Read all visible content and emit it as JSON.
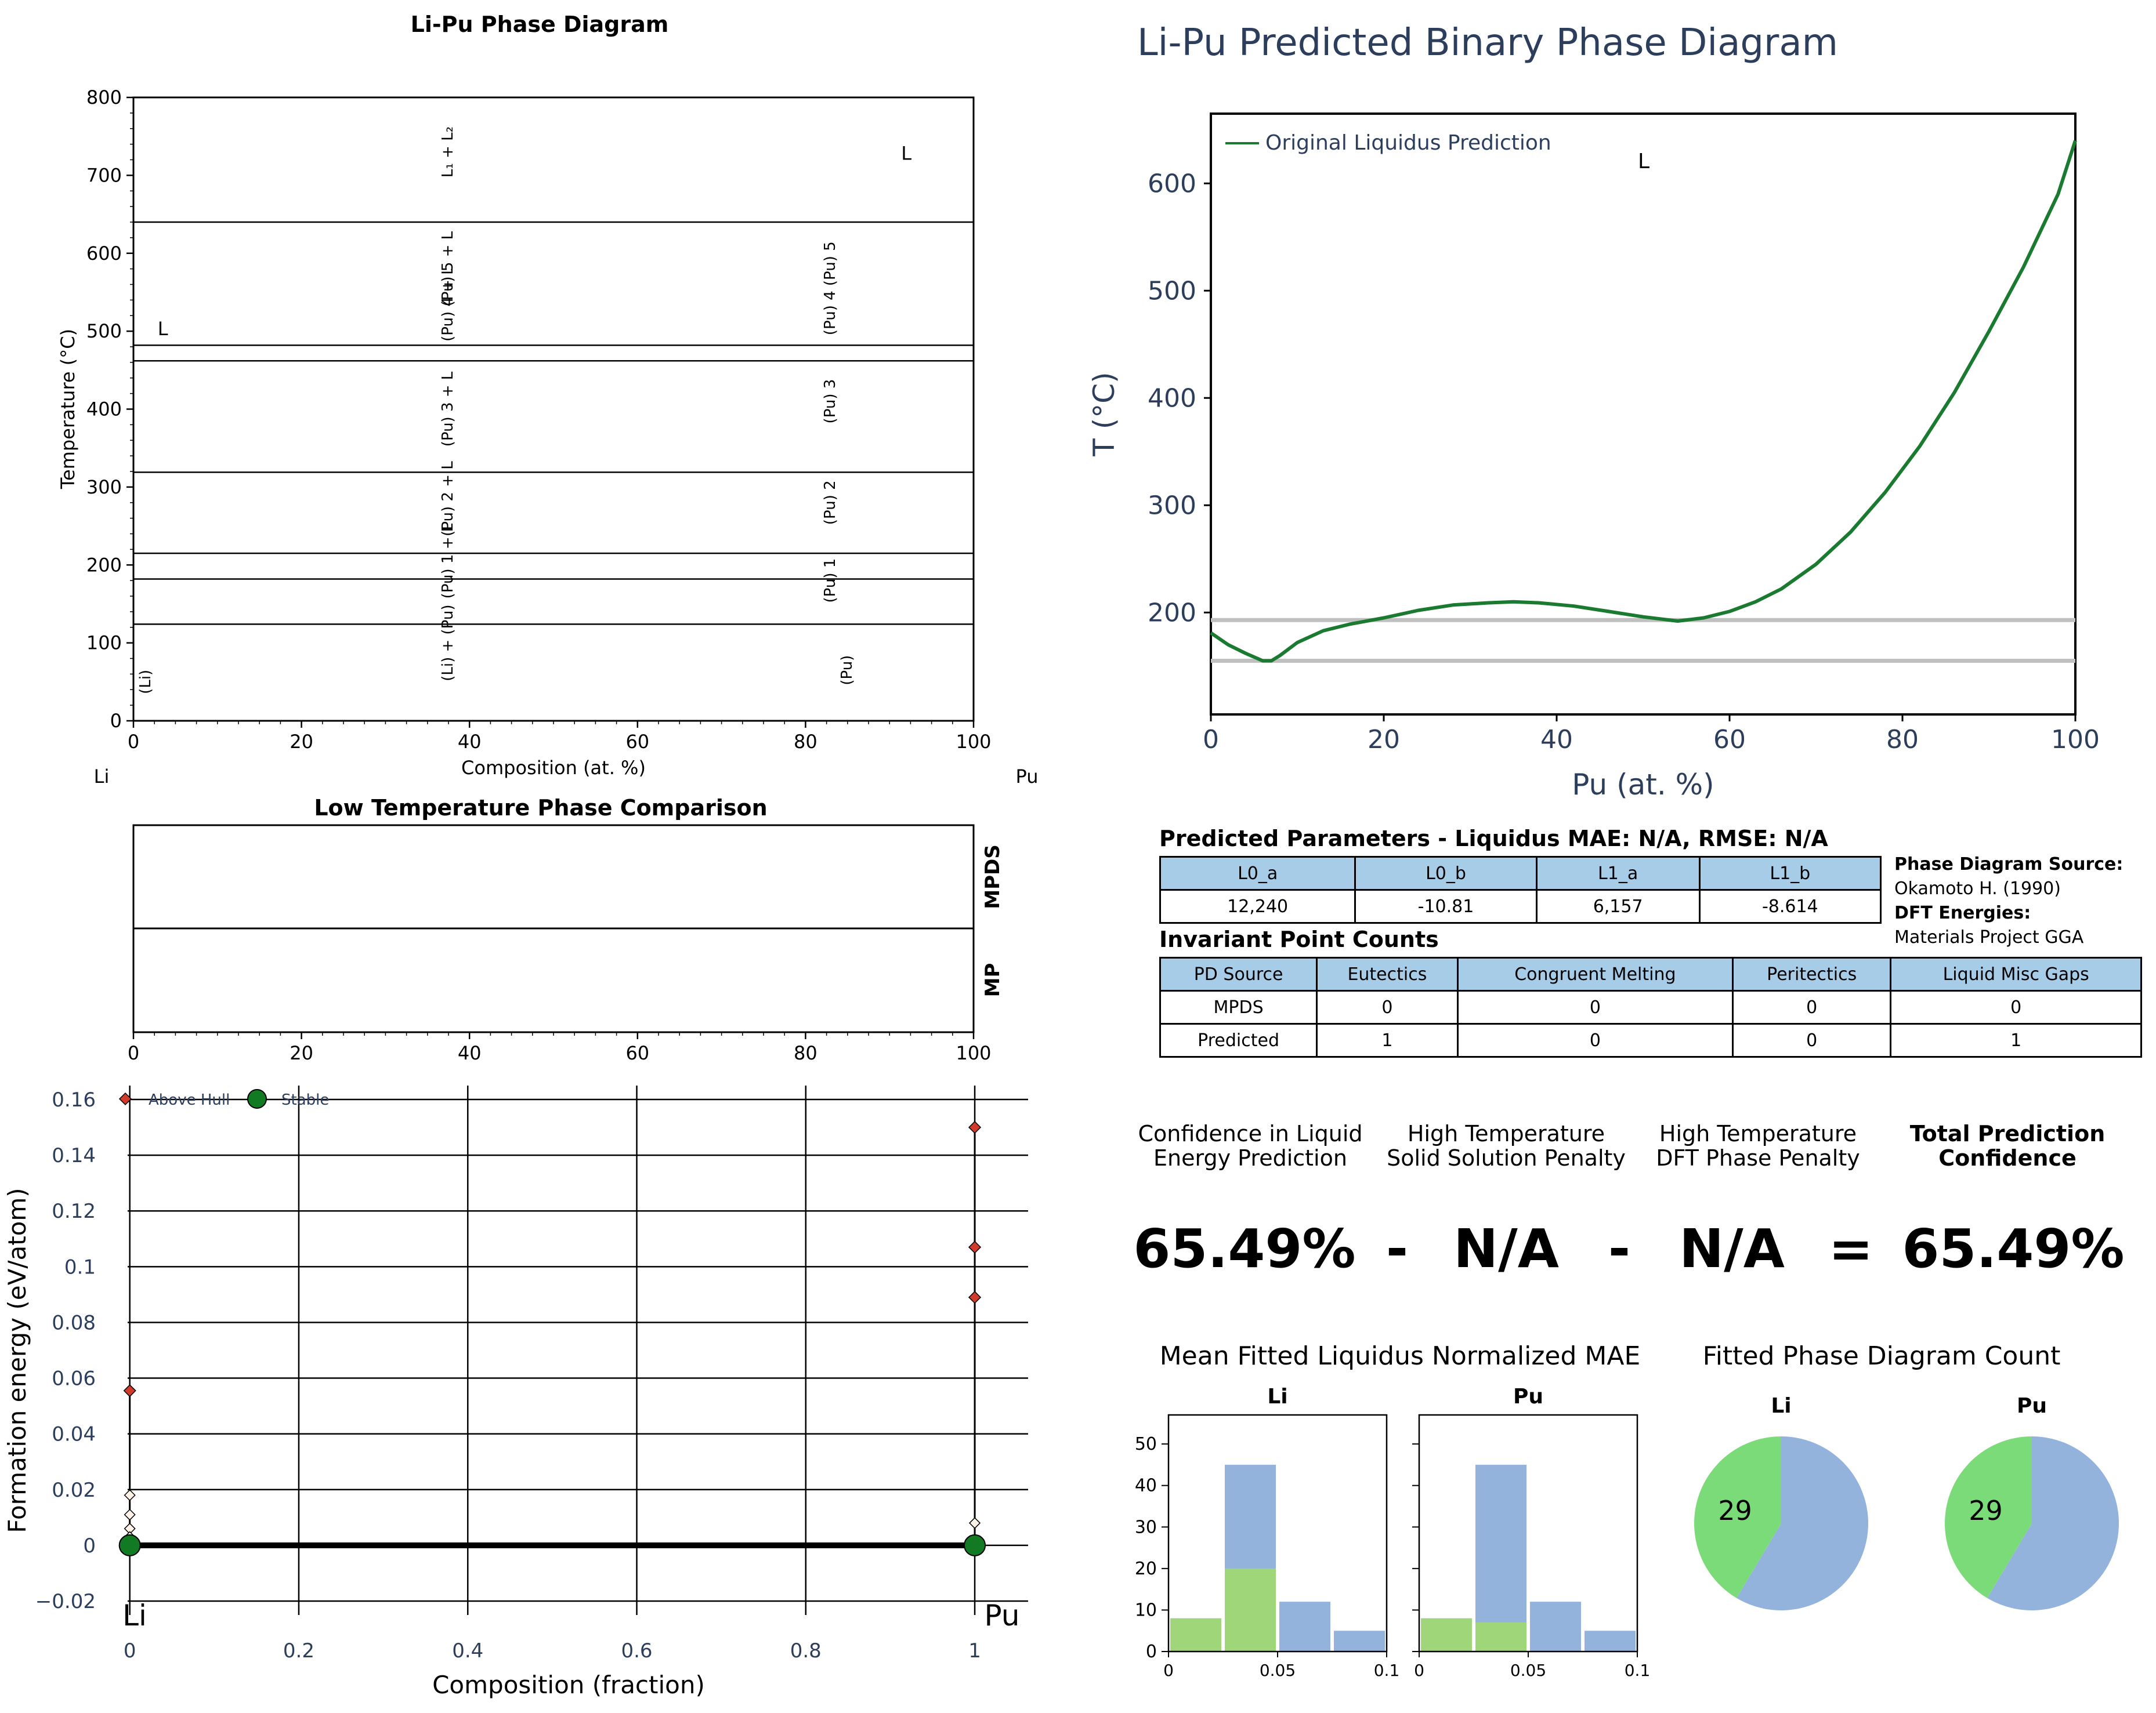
{
  "phase_diagram": {
    "title": "Li-Pu Phase Diagram",
    "xlabel": "Composition (at. %)",
    "ylabel": "Temperature (°C)",
    "left_element": "Li",
    "right_element": "Pu",
    "x_ticks": [
      "0",
      "20",
      "40",
      "60",
      "80",
      "100"
    ],
    "y_ticks": [
      "0",
      "100",
      "200",
      "300",
      "400",
      "500",
      "600",
      "700",
      "800"
    ],
    "region_labels": [
      {
        "text": "L",
        "x": 92,
        "y": 720,
        "rot": false
      },
      {
        "text": "L",
        "x": 3.5,
        "y": 495,
        "rot": false
      },
      {
        "text": "L₁ + L₂",
        "x": 38,
        "y": 730,
        "rot": true
      },
      {
        "text": "(Pu) 5 + L",
        "x": 38,
        "y": 580,
        "rot": true
      },
      {
        "text": "(Pu) 4 + L",
        "x": 38,
        "y": 535,
        "rot": true
      },
      {
        "text": "(Pu) 3 + L",
        "x": 38,
        "y": 400,
        "rot": true
      },
      {
        "text": "(Pu) 2 + L",
        "x": 38,
        "y": 285,
        "rot": true
      },
      {
        "text": "(Pu) 1 + L",
        "x": 38,
        "y": 205,
        "rot": true
      },
      {
        "text": "(Li) + (Pu)",
        "x": 38,
        "y": 100,
        "rot": true
      },
      {
        "text": "(Pu) 4 (Pu) 5",
        "x": 83.5,
        "y": 555,
        "rot": true
      },
      {
        "text": "(Pu) 3",
        "x": 83.5,
        "y": 410,
        "rot": true
      },
      {
        "text": "(Pu) 2",
        "x": 83.5,
        "y": 280,
        "rot": true
      },
      {
        "text": "(Pu) 1",
        "x": 83.5,
        "y": 180,
        "rot": true
      },
      {
        "text": "(Pu)",
        "x": 85.5,
        "y": 65,
        "rot": true
      },
      {
        "text": "(Li)",
        "x": 2,
        "y": 50,
        "rot": true
      }
    ]
  },
  "low_temp": {
    "title": "Low Temperature Phase Comparison",
    "row_labels": [
      "MPDS",
      "MP"
    ],
    "x_ticks": [
      "0",
      "20",
      "40",
      "60",
      "80",
      "100"
    ]
  },
  "hull": {
    "ylabel": "Formation energy (eV/atom)",
    "xlabel": "Composition (fraction)",
    "left_element": "Li",
    "right_element": "Pu",
    "legend": [
      "Above Hull",
      "Stable"
    ],
    "x_ticks": [
      "0",
      "0.2",
      "0.4",
      "0.6",
      "0.8",
      "1"
    ],
    "y_ticks": [
      "−0.02",
      "0",
      "0.02",
      "0.04",
      "0.06",
      "0.08",
      "0.1",
      "0.12",
      "0.14",
      "0.16"
    ]
  },
  "predicted": {
    "title": "Li-Pu Predicted Binary Phase Diagram",
    "xlabel": "Pu (at. %)",
    "ylabel": "T (°C)",
    "legend": "Original Liquidus Prediction",
    "region_label": "L",
    "x_ticks": [
      "0",
      "20",
      "40",
      "60",
      "80",
      "100"
    ],
    "y_ticks": [
      "200",
      "300",
      "400",
      "500",
      "600"
    ]
  },
  "params": {
    "title": "Predicted Parameters - Liquidus MAE: N/A, RMSE: N/A",
    "headers": [
      "L0_a",
      "L0_b",
      "L1_a",
      "L1_b"
    ],
    "values": [
      "12,240",
      "-10.81",
      "6,157",
      "-8.614"
    ]
  },
  "source": {
    "pd_label": "Phase Diagram Source:",
    "pd_value": "Okamoto H. (1990)",
    "dft_label": "DFT Energies:",
    "dft_value": "Materials Project GGA"
  },
  "invariants": {
    "title": "Invariant Point Counts",
    "headers": [
      "PD Source",
      "Eutectics",
      "Congruent Melting",
      "Peritectics",
      "Liquid Misc Gaps"
    ],
    "rows": [
      [
        "MPDS",
        "0",
        "0",
        "0",
        "0"
      ],
      [
        "Predicted",
        "1",
        "0",
        "0",
        "1"
      ]
    ]
  },
  "confidence": {
    "labels": [
      "Confidence in Liquid\nEnergy Prediction",
      "High Temperature\nSolid Solution Penalty",
      "High Temperature\nDFT Phase Penalty",
      "Total Prediction\nConfidence"
    ],
    "values": [
      "65.49%",
      "N/A",
      "N/A",
      "65.49%"
    ],
    "operators": [
      "-",
      "-",
      "="
    ]
  },
  "mae": {
    "title": "Mean Fitted Liquidus Normalized MAE",
    "panels": [
      "Li",
      "Pu"
    ],
    "x_ticks": [
      "0",
      "0.05",
      "0.1"
    ],
    "y_ticks": [
      "0",
      "10",
      "20",
      "30",
      "40",
      "50"
    ]
  },
  "pie": {
    "title": "Fitted Phase Diagram Count",
    "panels": [
      "Li",
      "Pu"
    ],
    "green_label": "29"
  },
  "colors": {
    "navy": "#2c3e5c",
    "green_line": "#1a7a30",
    "hull_red": "#d13b2c",
    "hull_green": "#127a22",
    "bar_blue": "#93b3dd",
    "bar_green": "#9fd873",
    "pie_green": "#7adb78",
    "pie_blue": "#93b3dd",
    "table_header": "#a6cce8",
    "gray_line": "#c0c0c0"
  },
  "chart_data": [
    {
      "type": "line",
      "title": "Li-Pu Phase Diagram",
      "xlabel": "Composition (at. %)",
      "ylabel": "Temperature (°C)",
      "xlim": [
        0,
        100
      ],
      "ylim": [
        0,
        800
      ],
      "invariant_lines_T": [
        640,
        482,
        462,
        319,
        215,
        182,
        124
      ]
    },
    {
      "type": "line",
      "title": "Li-Pu Predicted Binary Phase Diagram",
      "xlabel": "Pu (at. %)",
      "ylabel": "T (°C)",
      "xlim": [
        0,
        100
      ],
      "ylim": [
        105,
        665
      ],
      "series": [
        {
          "name": "Original Liquidus Prediction",
          "x": [
            0,
            2,
            4,
            6,
            7,
            8,
            10,
            13,
            16,
            20,
            24,
            28,
            32,
            35,
            38,
            42,
            46,
            50,
            54,
            57,
            60,
            63,
            66,
            70,
            74,
            78,
            82,
            86,
            90,
            94,
            98,
            100
          ],
          "y": [
            181,
            170,
            162,
            155,
            155,
            160,
            172,
            183,
            189,
            195,
            202,
            207,
            209,
            210,
            209,
            206,
            201,
            196,
            192,
            195,
            201,
            210,
            222,
            245,
            275,
            312,
            355,
            405,
            462,
            522,
            590,
            640
          ]
        },
        {
          "name": "",
          "x": [
            0,
            100
          ],
          "y": [
            193,
            193
          ]
        },
        {
          "name": "",
          "x": [
            0,
            100
          ],
          "y": [
            155,
            155
          ]
        }
      ]
    },
    {
      "type": "scatter",
      "xlabel": "Composition (fraction)",
      "ylabel": "Formation energy (eV/atom)",
      "xlim": [
        -0.03,
        1.07
      ],
      "ylim": [
        -0.025,
        0.165
      ],
      "series": [
        {
          "name": "Above Hull",
          "points": [
            [
              0,
              0.0555
            ],
            [
              1,
              0.15
            ],
            [
              1,
              0.107
            ],
            [
              1,
              0.089
            ]
          ]
        },
        {
          "name": "",
          "points": [
            [
              0,
              0.018
            ],
            [
              0,
              0.011
            ],
            [
              0,
              0.006
            ],
            [
              0,
              0.003
            ],
            [
              1,
              0.008
            ]
          ]
        },
        {
          "name": "Stable",
          "points": [
            [
              0,
              0
            ],
            [
              1,
              0
            ]
          ]
        }
      ]
    },
    {
      "type": "bar",
      "title": "Li",
      "bin_edges": [
        0,
        0.025,
        0.05,
        0.075,
        0.1
      ],
      "series": [
        {
          "name": "",
          "values": [
            8,
            45,
            12,
            5
          ]
        },
        {
          "name": "",
          "values": [
            8,
            20,
            0,
            0
          ]
        }
      ],
      "ylim": [
        0,
        57
      ]
    },
    {
      "type": "bar",
      "title": "Pu",
      "bin_edges": [
        0,
        0.025,
        0.05,
        0.075,
        0.1
      ],
      "series": [
        {
          "name": "",
          "values": [
            8,
            45,
            12,
            5
          ]
        },
        {
          "name": "",
          "values": [
            8,
            7,
            0,
            0
          ]
        }
      ],
      "ylim": [
        0,
        57
      ]
    },
    {
      "type": "pie",
      "title": "Li",
      "values": [
        29,
        41
      ]
    },
    {
      "type": "pie",
      "title": "Pu",
      "values": [
        29,
        41
      ]
    }
  ]
}
